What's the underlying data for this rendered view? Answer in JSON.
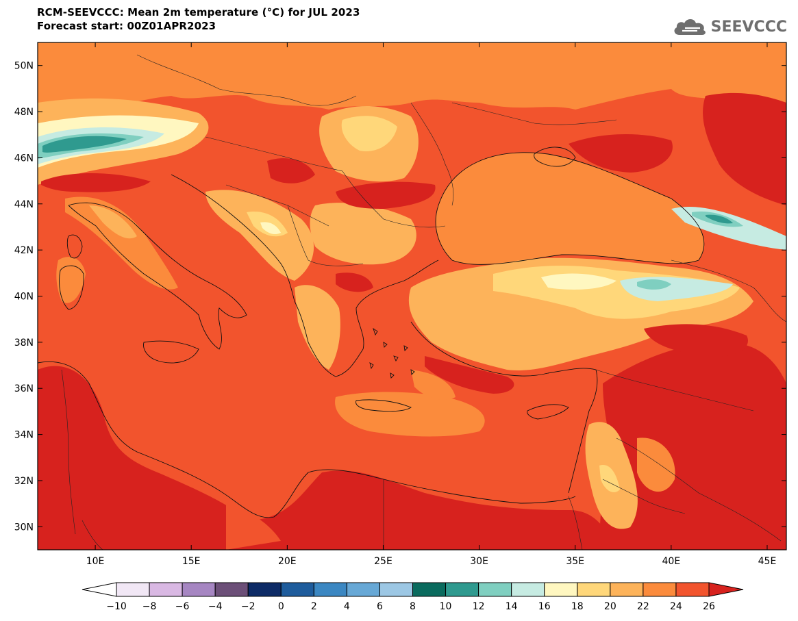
{
  "title": {
    "line1": "RCM-SEEVCCC: Mean 2m temperature (°C) for JUL 2023",
    "line2": "Forecast start: 00Z01APR2023"
  },
  "logo": {
    "text": "SEEVCCC",
    "icon": "cloud-icon"
  },
  "map": {
    "lon_range": [
      7,
      46
    ],
    "lat_range": [
      29,
      51
    ],
    "lat_ticks": [
      {
        "value": 50,
        "label": "50N"
      },
      {
        "value": 48,
        "label": "48N"
      },
      {
        "value": 46,
        "label": "46N"
      },
      {
        "value": 44,
        "label": "44N"
      },
      {
        "value": 42,
        "label": "42N"
      },
      {
        "value": 40,
        "label": "40N"
      },
      {
        "value": 38,
        "label": "38N"
      },
      {
        "value": 36,
        "label": "36N"
      },
      {
        "value": 34,
        "label": "34N"
      },
      {
        "value": 32,
        "label": "32N"
      },
      {
        "value": 30,
        "label": "30N"
      }
    ],
    "lon_ticks": [
      {
        "value": 10,
        "label": "10E"
      },
      {
        "value": 15,
        "label": "15E"
      },
      {
        "value": 20,
        "label": "20E"
      },
      {
        "value": 25,
        "label": "25E"
      },
      {
        "value": 30,
        "label": "30E"
      },
      {
        "value": 35,
        "label": "35E"
      },
      {
        "value": 40,
        "label": "40E"
      },
      {
        "value": 45,
        "label": "45E"
      }
    ]
  },
  "colorbar": {
    "labels": [
      "-10",
      "-8",
      "-6",
      "-4",
      "-2",
      "0",
      "2",
      "4",
      "6",
      "8",
      "10",
      "12",
      "14",
      "16",
      "18",
      "20",
      "22",
      "24",
      "26"
    ],
    "colors": [
      "#f1e7f5",
      "#d9b8e3",
      "#a686c2",
      "#6c4f78",
      "#0d2b66",
      "#1e5c9c",
      "#3b87c2",
      "#67a8d6",
      "#9cc7e4",
      "#0a6b5e",
      "#2f9a8f",
      "#7fcfc0",
      "#c6ebe2",
      "#fff7c0",
      "#ffd77a",
      "#fdb35a",
      "#fb8b3c",
      "#f2542d"
    ],
    "under_color": "#ffffff",
    "over_color": "#d7221e"
  },
  "cities_none": ""
}
